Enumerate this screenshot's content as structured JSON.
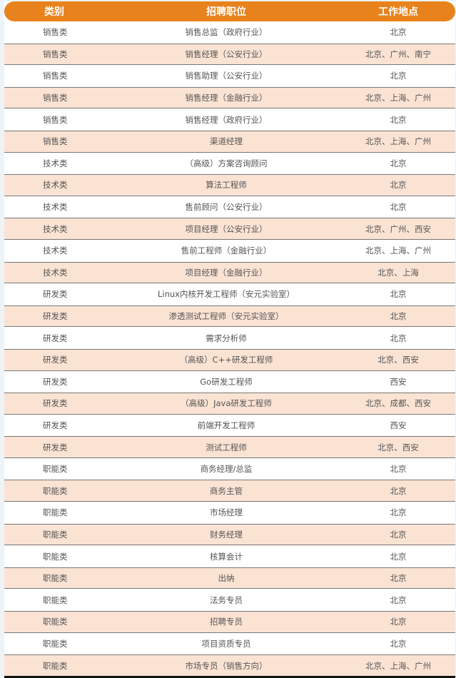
{
  "header": {
    "category": "类别",
    "position": "招聘职位",
    "location": "工作地点"
  },
  "colors": {
    "header": "#e8821c",
    "alt_row": "#fbe3d4"
  },
  "rows": [
    {
      "category": "销售类",
      "position": "销售总监（政府行业）",
      "location": "北京"
    },
    {
      "category": "销售类",
      "position": "销售经理（公安行业）",
      "location": "北京、广州、南宁"
    },
    {
      "category": "销售类",
      "position": "销售助理（公安行业）",
      "location": "北京"
    },
    {
      "category": "销售类",
      "position": "销售经理（金融行业）",
      "location": "北京、上海、广州"
    },
    {
      "category": "销售类",
      "position": "销售经理（政府行业）",
      "location": "北京"
    },
    {
      "category": "销售类",
      "position": "渠道经理",
      "location": "北京、上海、广州"
    },
    {
      "category": "技术类",
      "position": "（高级）方案咨询顾问",
      "location": "北京"
    },
    {
      "category": "技术类",
      "position": "算法工程师",
      "location": "北京"
    },
    {
      "category": "技术类",
      "position": "售前顾问（公安行业）",
      "location": "北京"
    },
    {
      "category": "技术类",
      "position": "项目经理（公安行业）",
      "location": "北京、广州、西安"
    },
    {
      "category": "技术类",
      "position": "售前工程师（金融行业）",
      "location": "北京、上海、广州"
    },
    {
      "category": "技术类",
      "position": "项目经理（金融行业）",
      "location": "北京、上海"
    },
    {
      "category": "研发类",
      "position": "Linux内核开发工程师（安元实验室）",
      "location": "北京"
    },
    {
      "category": "研发类",
      "position": "渗透测试工程师（安元实验室）",
      "location": "北京"
    },
    {
      "category": "研发类",
      "position": "需求分析师",
      "location": "北京"
    },
    {
      "category": "研发类",
      "position": "（高级）C++研发工程师",
      "location": "北京、西安"
    },
    {
      "category": "研发类",
      "position": "Go研发工程师",
      "location": "西安"
    },
    {
      "category": "研发类",
      "position": "（高级）Java研发工程师",
      "location": "北京、成都、西安"
    },
    {
      "category": "研发类",
      "position": "前端开发工程师",
      "location": "西安"
    },
    {
      "category": "研发类",
      "position": "测试工程师",
      "location": "北京、西安"
    },
    {
      "category": "职能类",
      "position": "商务经理/总监",
      "location": "北京"
    },
    {
      "category": "职能类",
      "position": "商务主管",
      "location": "北京"
    },
    {
      "category": "职能类",
      "position": "市场经理",
      "location": "北京"
    },
    {
      "category": "职能类",
      "position": "财务经理",
      "location": "北京"
    },
    {
      "category": "职能类",
      "position": "核算会计",
      "location": "北京"
    },
    {
      "category": "职能类",
      "position": "出纳",
      "location": "北京"
    },
    {
      "category": "职能类",
      "position": "法务专员",
      "location": "北京"
    },
    {
      "category": "职能类",
      "position": "招聘专员",
      "location": "北京"
    },
    {
      "category": "职能类",
      "position": "项目资质专员",
      "location": "北京"
    },
    {
      "category": "职能类",
      "position": "市场专员（销售方向）",
      "location": "北京、上海、广州"
    }
  ]
}
